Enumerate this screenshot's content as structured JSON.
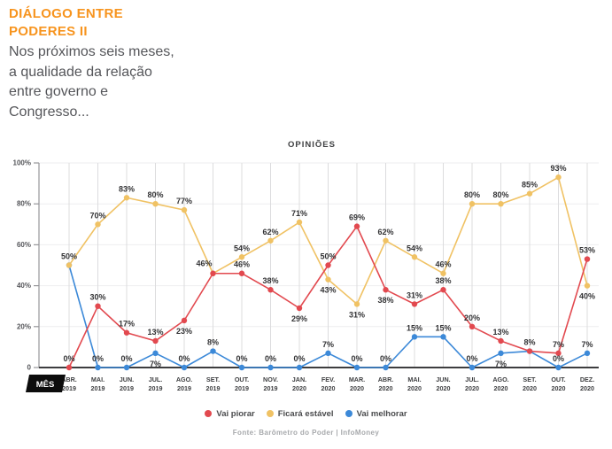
{
  "header": {
    "title": "DIÁLOGO ENTRE\nPODERES II",
    "subtitle": "Nos próximos seis meses,\na qualidade da relação\nentre governo e\nCongresso...",
    "title_color": "#f7941e"
  },
  "chart_data": {
    "type": "line",
    "title": "OPINIÕES",
    "x_axis_label": "MÊS",
    "categories": [
      "ABR. 2019",
      "MAI. 2019",
      "JUN. 2019",
      "JUL. 2019",
      "AGO. 2019",
      "SET. 2019",
      "OUT. 2019",
      "NOV. 2019",
      "JAN. 2020",
      "FEV. 2020",
      "MAR. 2020",
      "ABR. 2020",
      "MAI. 2020",
      "JUN. 2020",
      "JUL. 2020",
      "AGO. 2020",
      "SET. 2020",
      "OUT. 2020",
      "DEZ. 2020"
    ],
    "ylim": [
      0,
      100
    ],
    "y_ticks": [
      {
        "value": 100,
        "label": "100%"
      },
      {
        "value": 80,
        "label": "80%"
      },
      {
        "value": 60,
        "label": "60%"
      },
      {
        "value": 40,
        "label": "40%"
      },
      {
        "value": 20,
        "label": "20%"
      },
      {
        "value": 0,
        "label": "0"
      }
    ],
    "grid": {
      "vertical": true,
      "horizontal": true
    },
    "legend_position": "bottom",
    "series": [
      {
        "name": "Vai piorar",
        "color": "#e2494f",
        "values": [
          0,
          30,
          17,
          13,
          23,
          46,
          46,
          38,
          29,
          50,
          69,
          38,
          31,
          38,
          20,
          13,
          8,
          7,
          53
        ],
        "label_pos": [
          "above",
          "above",
          "above",
          "above",
          "below",
          "above-left",
          "above",
          "above",
          "below",
          "above",
          "above",
          "below",
          "above",
          "above",
          "above",
          "above",
          "above",
          "above",
          "above"
        ]
      },
      {
        "name": "Ficará estável",
        "color": "#f0c264",
        "values": [
          50,
          70,
          83,
          80,
          77,
          46,
          54,
          62,
          71,
          43,
          31,
          62,
          54,
          46,
          80,
          80,
          85,
          93,
          40
        ],
        "label_pos": [
          "above",
          "above",
          "above",
          "above",
          "above",
          "none",
          "above",
          "above",
          "above",
          "below",
          "below",
          "above",
          "above",
          "above",
          "above",
          "above",
          "above",
          "above",
          "below"
        ]
      },
      {
        "name": "Vai melhorar",
        "color": "#3c89d8",
        "values": [
          50,
          0,
          0,
          7,
          0,
          8,
          0,
          0,
          0,
          7,
          0,
          0,
          15,
          15,
          0,
          7,
          8,
          0,
          7
        ],
        "label_pos": [
          "none",
          "above",
          "above",
          "below",
          "above",
          "above",
          "above",
          "above",
          "above",
          "above",
          "above",
          "above",
          "above",
          "above",
          "above",
          "below",
          "none",
          "above",
          "above"
        ]
      }
    ]
  },
  "footer": {
    "source": "Fonte: Barômetro do Poder | InfoMoney"
  }
}
